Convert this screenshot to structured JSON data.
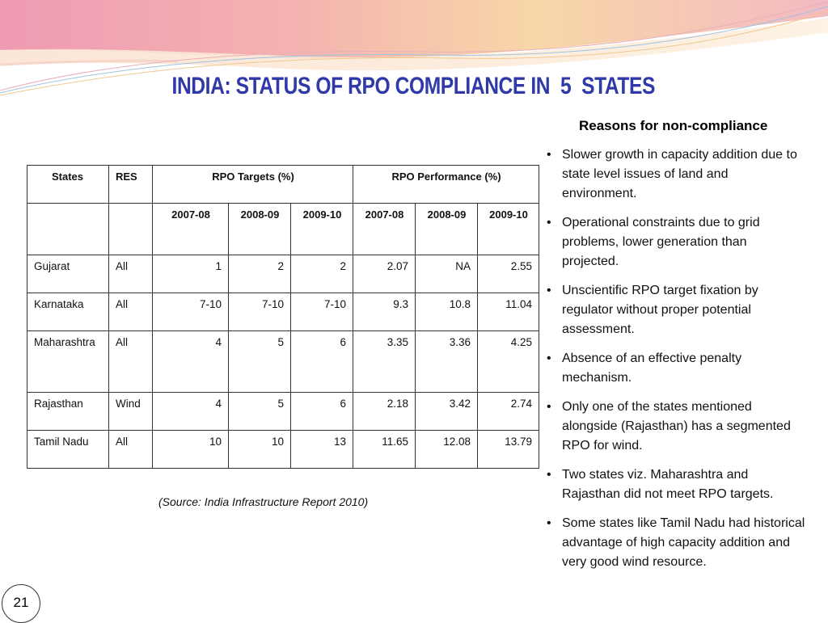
{
  "slide": {
    "title": "INDIA: STATUS OF RPO COMPLIANCE IN  5  STATES",
    "page_number": "21"
  },
  "table": {
    "headers": {
      "states": "States",
      "res": "RES",
      "targets": "RPO Targets (%)",
      "performance": "RPO Performance (%)"
    },
    "years": [
      "2007-08",
      "2008-09",
      "2009-10",
      "2007-08",
      "2008-09",
      "2009-10"
    ],
    "rows": [
      {
        "state": "Gujarat",
        "res": "All",
        "t1": "1",
        "t2": "2",
        "t3": "2",
        "p1": "2.07",
        "p2": "NA",
        "p3": "2.55"
      },
      {
        "state": "Karnataka",
        "res": "All",
        "t1": "7-10",
        "t2": "7-10",
        "t3": "7-10",
        "p1": "9.3",
        "p2": "10.8",
        "p3": "11.04"
      },
      {
        "state": "Maharashtra",
        "res": "All",
        "t1": "4",
        "t2": "5",
        "t3": "6",
        "p1": "3.35",
        "p2": "3.36",
        "p3": "4.25"
      },
      {
        "state": "Rajasthan",
        "res": "Wind",
        "t1": "4",
        "t2": "5",
        "t3": "6",
        "p1": "2.18",
        "p2": "3.42",
        "p3": "2.74"
      },
      {
        "state": "Tamil Nadu",
        "res": "All",
        "t1": "10",
        "t2": "10",
        "t3": "13",
        "p1": "11.65",
        "p2": "12.08",
        "p3": "13.79"
      }
    ],
    "source": "(Source: India Infrastructure Report 2010)"
  },
  "reasons": {
    "title": "Reasons for non-compliance",
    "bullet": "•",
    "items": [
      "Slower growth in capacity addition due to state level issues of land and environment.",
      "Operational constraints due to grid problems, lower generation than projected.",
      "Unscientific RPO target fixation by regulator without proper potential assessment.",
      "Absence of an effective penalty mechanism.",
      "Only one of the states mentioned alongside (Rajasthan) has a segmented RPO for wind.",
      "Two states viz. Maharashtra and Rajasthan did not meet RPO targets.",
      "Some states like Tamil Nadu had historical  advantage of high capacity addition and very good wind resource."
    ]
  },
  "colors": {
    "title": "#2f3aa8",
    "banner_pink": "#e88aa8",
    "banner_peach": "#f6c79a"
  }
}
